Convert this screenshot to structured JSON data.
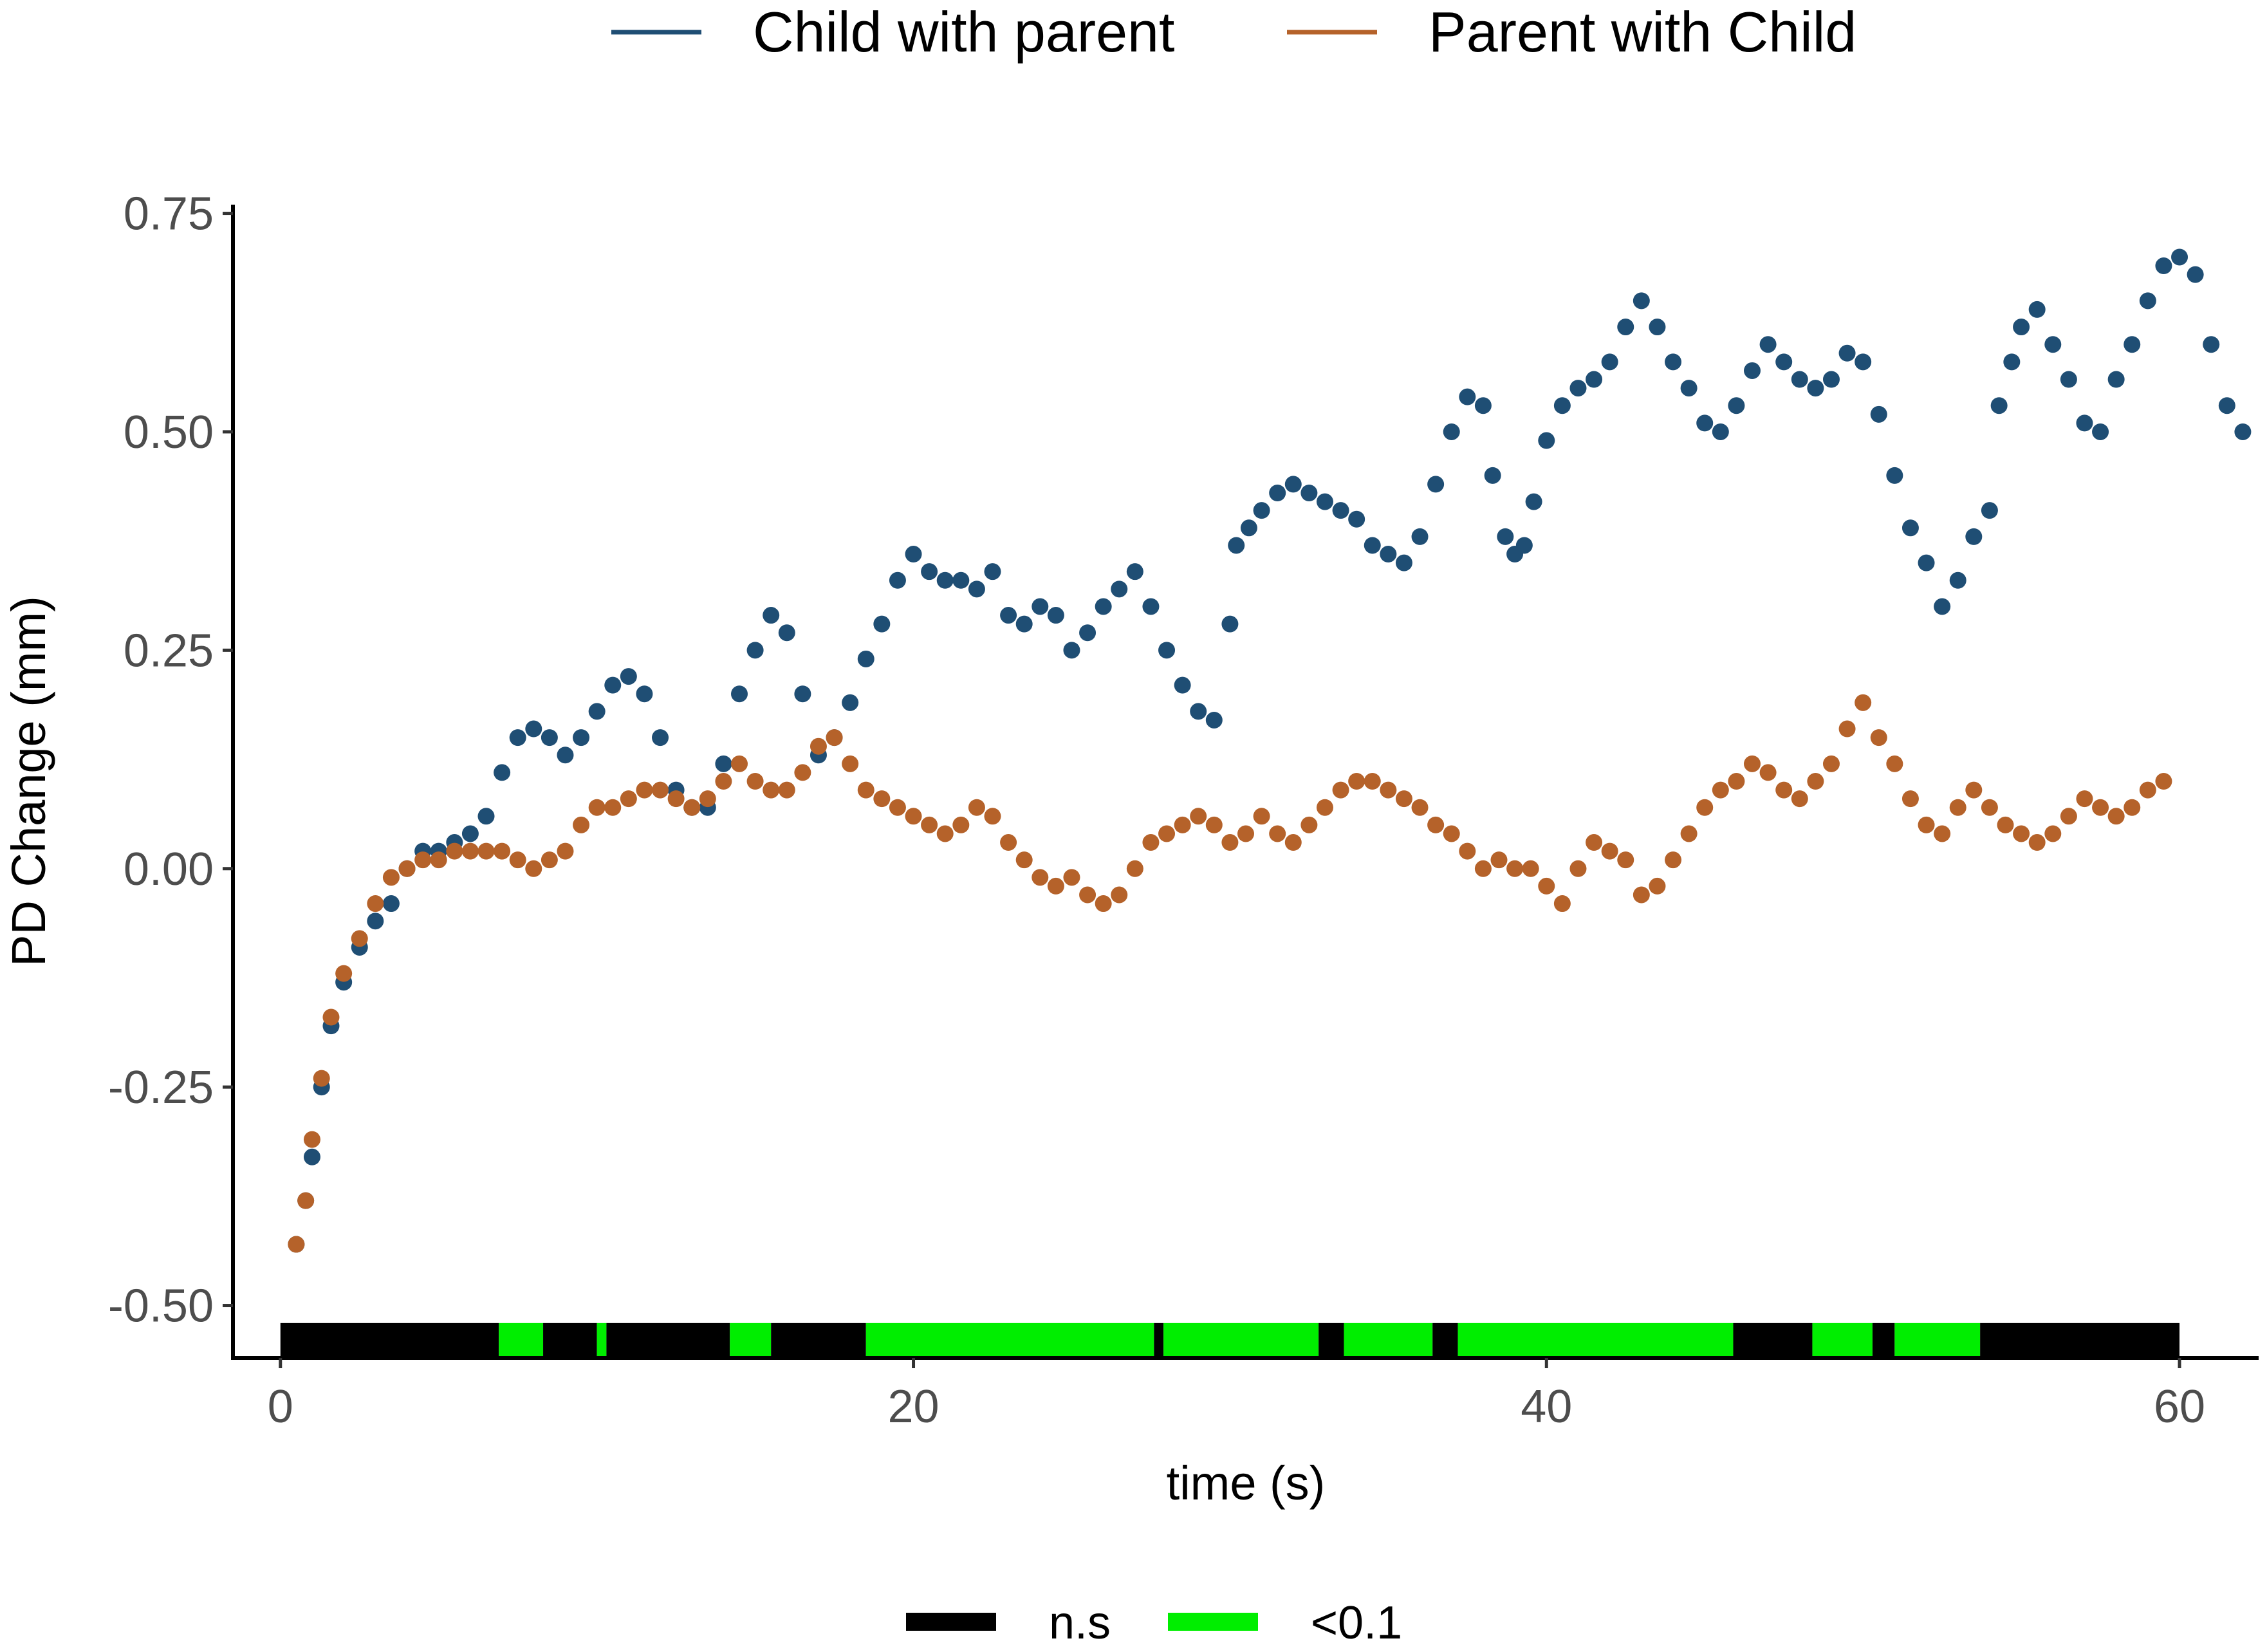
{
  "chart_data": {
    "type": "scatter",
    "title": "",
    "xlabel": "time (s)",
    "ylabel": "PD Change (mm)",
    "xlim": [
      -1.5,
      62.5
    ],
    "ylim": [
      -0.56,
      0.76
    ],
    "x_ticks": [
      0,
      20,
      40,
      60
    ],
    "x_tick_labels": [
      "0",
      "20",
      "40",
      "60"
    ],
    "y_ticks": [
      -0.5,
      -0.25,
      0,
      0.25,
      0.5,
      0.75
    ],
    "y_tick_labels": [
      "-0.50",
      "-0.25",
      "0.00",
      "0.25",
      "0.50",
      "0.75"
    ],
    "grid": false,
    "legend_position": "top",
    "series": [
      {
        "name": "Child with parent",
        "color": "#1f4e74",
        "points": [
          [
            0.5,
            -0.43
          ],
          [
            0.8,
            -0.38
          ],
          [
            1.0,
            -0.33
          ],
          [
            1.3,
            -0.25
          ],
          [
            1.6,
            -0.18
          ],
          [
            2.0,
            -0.13
          ],
          [
            2.5,
            -0.09
          ],
          [
            3.0,
            -0.06
          ],
          [
            3.5,
            -0.04
          ],
          [
            4.0,
            0.0
          ],
          [
            4.5,
            0.02
          ],
          [
            5.0,
            0.02
          ],
          [
            5.5,
            0.03
          ],
          [
            6.0,
            0.04
          ],
          [
            6.5,
            0.06
          ],
          [
            7.0,
            0.11
          ],
          [
            7.5,
            0.15
          ],
          [
            8.0,
            0.16
          ],
          [
            8.5,
            0.15
          ],
          [
            9.0,
            0.13
          ],
          [
            9.5,
            0.15
          ],
          [
            10.0,
            0.18
          ],
          [
            10.5,
            0.21
          ],
          [
            11.0,
            0.22
          ],
          [
            11.5,
            0.2
          ],
          [
            12.0,
            0.15
          ],
          [
            12.5,
            0.09
          ],
          [
            13.0,
            0.07
          ],
          [
            13.5,
            0.07
          ],
          [
            14.0,
            0.12
          ],
          [
            14.5,
            0.2
          ],
          [
            15.0,
            0.25
          ],
          [
            15.5,
            0.29
          ],
          [
            16.0,
            0.27
          ],
          [
            16.5,
            0.2
          ],
          [
            17.0,
            0.13
          ],
          [
            17.5,
            0.15
          ],
          [
            18.0,
            0.19
          ],
          [
            18.5,
            0.24
          ],
          [
            19.0,
            0.28
          ],
          [
            19.5,
            0.33
          ],
          [
            20.0,
            0.36
          ],
          [
            20.5,
            0.34
          ],
          [
            21.0,
            0.33
          ],
          [
            21.5,
            0.33
          ],
          [
            22.0,
            0.32
          ],
          [
            22.5,
            0.34
          ],
          [
            23.0,
            0.29
          ],
          [
            23.5,
            0.28
          ],
          [
            24.0,
            0.3
          ],
          [
            24.5,
            0.29
          ],
          [
            25.0,
            0.25
          ],
          [
            25.5,
            0.27
          ],
          [
            26.0,
            0.3
          ],
          [
            26.5,
            0.32
          ],
          [
            27.0,
            0.34
          ],
          [
            27.5,
            0.3
          ],
          [
            28.0,
            0.25
          ],
          [
            28.5,
            0.21
          ],
          [
            29.0,
            0.18
          ],
          [
            29.5,
            0.17
          ],
          [
            30.0,
            0.28
          ],
          [
            30.2,
            0.37
          ],
          [
            30.6,
            0.39
          ],
          [
            31.0,
            0.41
          ],
          [
            31.5,
            0.43
          ],
          [
            32.0,
            0.44
          ],
          [
            32.5,
            0.43
          ],
          [
            33.0,
            0.42
          ],
          [
            33.5,
            0.41
          ],
          [
            34.0,
            0.4
          ],
          [
            34.5,
            0.37
          ],
          [
            35.0,
            0.36
          ],
          [
            35.5,
            0.35
          ],
          [
            36.0,
            0.38
          ],
          [
            36.5,
            0.44
          ],
          [
            37.0,
            0.5
          ],
          [
            37.5,
            0.54
          ],
          [
            38.0,
            0.53
          ],
          [
            38.3,
            0.45
          ],
          [
            38.7,
            0.38
          ],
          [
            39.0,
            0.36
          ],
          [
            39.3,
            0.37
          ],
          [
            39.6,
            0.42
          ],
          [
            40.0,
            0.49
          ],
          [
            40.5,
            0.53
          ],
          [
            41.0,
            0.55
          ],
          [
            41.5,
            0.56
          ],
          [
            42.0,
            0.58
          ],
          [
            42.5,
            0.62
          ],
          [
            43.0,
            0.65
          ],
          [
            43.5,
            0.62
          ],
          [
            44.0,
            0.58
          ],
          [
            44.5,
            0.55
          ],
          [
            45.0,
            0.51
          ],
          [
            45.5,
            0.5
          ],
          [
            46.0,
            0.53
          ],
          [
            46.5,
            0.57
          ],
          [
            47.0,
            0.6
          ],
          [
            47.5,
            0.58
          ],
          [
            48.0,
            0.56
          ],
          [
            48.5,
            0.55
          ],
          [
            49.0,
            0.56
          ],
          [
            49.5,
            0.59
          ],
          [
            50.0,
            0.58
          ],
          [
            50.5,
            0.52
          ],
          [
            51.0,
            0.45
          ],
          [
            51.5,
            0.39
          ],
          [
            52.0,
            0.35
          ],
          [
            52.5,
            0.3
          ],
          [
            53.0,
            0.33
          ],
          [
            53.5,
            0.38
          ],
          [
            54.0,
            0.41
          ],
          [
            54.3,
            0.53
          ],
          [
            54.7,
            0.58
          ],
          [
            55.0,
            0.62
          ],
          [
            55.5,
            0.64
          ],
          [
            56.0,
            0.6
          ],
          [
            56.5,
            0.56
          ],
          [
            57.0,
            0.51
          ],
          [
            57.5,
            0.5
          ],
          [
            58.0,
            0.56
          ],
          [
            58.5,
            0.6
          ],
          [
            59.0,
            0.65
          ],
          [
            59.5,
            0.69
          ],
          [
            60.0,
            0.7
          ],
          [
            60.5,
            0.68
          ],
          [
            61.0,
            0.6
          ],
          [
            61.5,
            0.53
          ],
          [
            62.0,
            0.5
          ]
        ]
      },
      {
        "name": "Parent with Child",
        "color": "#b5622a",
        "points": [
          [
            0.5,
            -0.43
          ],
          [
            0.8,
            -0.38
          ],
          [
            1.0,
            -0.31
          ],
          [
            1.3,
            -0.24
          ],
          [
            1.6,
            -0.17
          ],
          [
            2.0,
            -0.12
          ],
          [
            2.5,
            -0.08
          ],
          [
            3.0,
            -0.04
          ],
          [
            3.5,
            -0.01
          ],
          [
            4.0,
            0.0
          ],
          [
            4.5,
            0.01
          ],
          [
            5.0,
            0.01
          ],
          [
            5.5,
            0.02
          ],
          [
            6.0,
            0.02
          ],
          [
            6.5,
            0.02
          ],
          [
            7.0,
            0.02
          ],
          [
            7.5,
            0.01
          ],
          [
            8.0,
            0.0
          ],
          [
            8.5,
            0.01
          ],
          [
            9.0,
            0.02
          ],
          [
            9.5,
            0.05
          ],
          [
            10.0,
            0.07
          ],
          [
            10.5,
            0.07
          ],
          [
            11.0,
            0.08
          ],
          [
            11.5,
            0.09
          ],
          [
            12.0,
            0.09
          ],
          [
            12.5,
            0.08
          ],
          [
            13.0,
            0.07
          ],
          [
            13.5,
            0.08
          ],
          [
            14.0,
            0.1
          ],
          [
            14.5,
            0.12
          ],
          [
            15.0,
            0.1
          ],
          [
            15.5,
            0.09
          ],
          [
            16.0,
            0.09
          ],
          [
            16.5,
            0.11
          ],
          [
            17.0,
            0.14
          ],
          [
            17.5,
            0.15
          ],
          [
            18.0,
            0.12
          ],
          [
            18.5,
            0.09
          ],
          [
            19.0,
            0.08
          ],
          [
            19.5,
            0.07
          ],
          [
            20.0,
            0.06
          ],
          [
            20.5,
            0.05
          ],
          [
            21.0,
            0.04
          ],
          [
            21.5,
            0.05
          ],
          [
            22.0,
            0.07
          ],
          [
            22.5,
            0.06
          ],
          [
            23.0,
            0.03
          ],
          [
            23.5,
            0.01
          ],
          [
            24.0,
            -0.01
          ],
          [
            24.5,
            -0.02
          ],
          [
            25.0,
            -0.01
          ],
          [
            25.5,
            -0.03
          ],
          [
            26.0,
            -0.04
          ],
          [
            26.5,
            -0.03
          ],
          [
            27.0,
            0.0
          ],
          [
            27.5,
            0.03
          ],
          [
            28.0,
            0.04
          ],
          [
            28.5,
            0.05
          ],
          [
            29.0,
            0.06
          ],
          [
            29.5,
            0.05
          ],
          [
            30.0,
            0.03
          ],
          [
            30.5,
            0.04
          ],
          [
            31.0,
            0.06
          ],
          [
            31.5,
            0.04
          ],
          [
            32.0,
            0.03
          ],
          [
            32.5,
            0.05
          ],
          [
            33.0,
            0.07
          ],
          [
            33.5,
            0.09
          ],
          [
            34.0,
            0.1
          ],
          [
            34.5,
            0.1
          ],
          [
            35.0,
            0.09
          ],
          [
            35.5,
            0.08
          ],
          [
            36.0,
            0.07
          ],
          [
            36.5,
            0.05
          ],
          [
            37.0,
            0.04
          ],
          [
            37.5,
            0.02
          ],
          [
            38.0,
            0.0
          ],
          [
            38.5,
            0.01
          ],
          [
            39.0,
            0.0
          ],
          [
            39.5,
            0.0
          ],
          [
            40.0,
            -0.02
          ],
          [
            40.5,
            -0.04
          ],
          [
            41.0,
            0.0
          ],
          [
            41.5,
            0.03
          ],
          [
            42.0,
            0.02
          ],
          [
            42.5,
            0.01
          ],
          [
            43.0,
            -0.03
          ],
          [
            43.5,
            -0.02
          ],
          [
            44.0,
            0.01
          ],
          [
            44.5,
            0.04
          ],
          [
            45.0,
            0.07
          ],
          [
            45.5,
            0.09
          ],
          [
            46.0,
            0.1
          ],
          [
            46.5,
            0.12
          ],
          [
            47.0,
            0.11
          ],
          [
            47.5,
            0.09
          ],
          [
            48.0,
            0.08
          ],
          [
            48.5,
            0.1
          ],
          [
            49.0,
            0.12
          ],
          [
            49.5,
            0.16
          ],
          [
            50.0,
            0.19
          ],
          [
            50.5,
            0.15
          ],
          [
            51.0,
            0.12
          ],
          [
            51.5,
            0.08
          ],
          [
            52.0,
            0.05
          ],
          [
            52.5,
            0.04
          ],
          [
            53.0,
            0.07
          ],
          [
            53.5,
            0.09
          ],
          [
            54.0,
            0.07
          ],
          [
            54.5,
            0.05
          ],
          [
            55.0,
            0.04
          ],
          [
            55.5,
            0.03
          ],
          [
            56.0,
            0.04
          ],
          [
            56.5,
            0.06
          ],
          [
            57.0,
            0.08
          ],
          [
            57.5,
            0.07
          ],
          [
            58.0,
            0.06
          ],
          [
            58.5,
            0.07
          ],
          [
            59.0,
            0.09
          ],
          [
            59.5,
            0.1
          ]
        ]
      }
    ],
    "significance_bar": {
      "y": -0.54,
      "legend": [
        {
          "label": "n.s",
          "color": "#000000"
        },
        {
          "label": "<0.1",
          "color": "#00ee00"
        }
      ],
      "segments": [
        [
          0.0,
          6.9,
          "n.s"
        ],
        [
          6.9,
          8.3,
          "<0.1"
        ],
        [
          8.3,
          10.0,
          "n.s"
        ],
        [
          10.0,
          10.3,
          "<0.1"
        ],
        [
          10.3,
          14.2,
          "n.s"
        ],
        [
          14.2,
          15.5,
          "<0.1"
        ],
        [
          15.5,
          18.5,
          "n.s"
        ],
        [
          18.5,
          27.6,
          "<0.1"
        ],
        [
          27.6,
          27.9,
          "n.s"
        ],
        [
          27.9,
          32.8,
          "<0.1"
        ],
        [
          32.8,
          33.6,
          "n.s"
        ],
        [
          33.6,
          36.4,
          "<0.1"
        ],
        [
          36.4,
          37.2,
          "n.s"
        ],
        [
          37.2,
          45.9,
          "<0.1"
        ],
        [
          45.9,
          48.4,
          "n.s"
        ],
        [
          48.4,
          50.3,
          "<0.1"
        ],
        [
          50.3,
          51.0,
          "n.s"
        ],
        [
          51.0,
          53.7,
          "<0.1"
        ],
        [
          53.7,
          60.0,
          "n.s"
        ]
      ]
    }
  }
}
